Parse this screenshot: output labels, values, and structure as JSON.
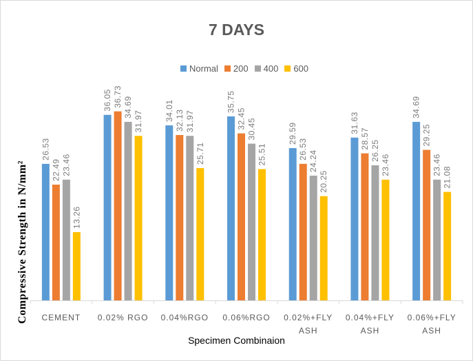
{
  "chart_data": {
    "type": "bar",
    "title": "7 DAYS",
    "xlabel": "Specimen Combinaion",
    "ylabel": "Compressive Strength in N/mm²",
    "categories": [
      [
        "CEMENT"
      ],
      [
        "0.02% RGO"
      ],
      [
        "0.04%RGO"
      ],
      [
        "0.06%RGO"
      ],
      [
        "0.02%+FLY",
        "ASH"
      ],
      [
        "0.04%+FLY",
        "ASH"
      ],
      [
        "0.06%+FLY",
        "ASH"
      ]
    ],
    "series": [
      {
        "name": "Normal",
        "color": "#5b9bd5",
        "values": [
          26.53,
          36.05,
          34.01,
          35.75,
          29.59,
          31.63,
          34.69
        ]
      },
      {
        "name": "200",
        "color": "#ed7d31",
        "values": [
          22.49,
          36.73,
          32.13,
          32.45,
          26.53,
          28.57,
          29.25
        ]
      },
      {
        "name": "400",
        "color": "#a5a5a5",
        "values": [
          23.46,
          34.69,
          31.97,
          30.45,
          24.24,
          26.25,
          23.46
        ]
      },
      {
        "name": "600",
        "color": "#ffc000",
        "values": [
          13.26,
          31.97,
          25.71,
          25.51,
          20.25,
          23.46,
          21.08
        ]
      }
    ],
    "ylim": [
      0,
      40
    ],
    "grid": false,
    "legend_position": "top"
  }
}
